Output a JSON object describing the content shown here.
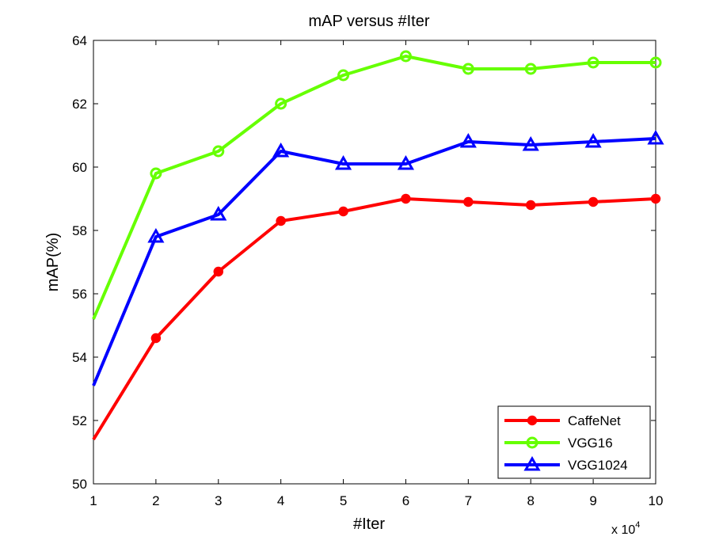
{
  "chart_data": {
    "type": "line",
    "title": "mAP versus #Iter",
    "xlabel": "#Iter",
    "ylabel": "mAP(%)",
    "x_multiplier_label": "x 10",
    "x_multiplier_exponent": "4",
    "x": [
      1,
      2,
      3,
      4,
      5,
      6,
      7,
      8,
      9,
      10
    ],
    "xlim": [
      1,
      10
    ],
    "ylim": [
      50,
      64
    ],
    "xticks": [
      "1",
      "2",
      "3",
      "4",
      "5",
      "6",
      "7",
      "8",
      "9",
      "10"
    ],
    "yticks": [
      "50",
      "52",
      "54",
      "56",
      "58",
      "60",
      "62",
      "64"
    ],
    "grid": false,
    "legend_position": "bottom-right",
    "series": [
      {
        "name": "CaffeNet",
        "color": "#ff0000",
        "marker": "filled-circle",
        "values": [
          51.4,
          54.6,
          56.7,
          58.3,
          58.6,
          59.0,
          58.9,
          58.8,
          58.9,
          59.0
        ]
      },
      {
        "name": "VGG16",
        "color": "#66ff00",
        "marker": "open-circle",
        "values": [
          55.2,
          59.8,
          60.5,
          62.0,
          62.9,
          63.5,
          63.1,
          63.1,
          63.3,
          63.3
        ]
      },
      {
        "name": "VGG1024",
        "color": "#0000ff",
        "marker": "triangle",
        "values": [
          53.1,
          57.8,
          58.5,
          60.5,
          60.1,
          60.1,
          60.8,
          60.7,
          60.8,
          60.9
        ]
      }
    ]
  }
}
